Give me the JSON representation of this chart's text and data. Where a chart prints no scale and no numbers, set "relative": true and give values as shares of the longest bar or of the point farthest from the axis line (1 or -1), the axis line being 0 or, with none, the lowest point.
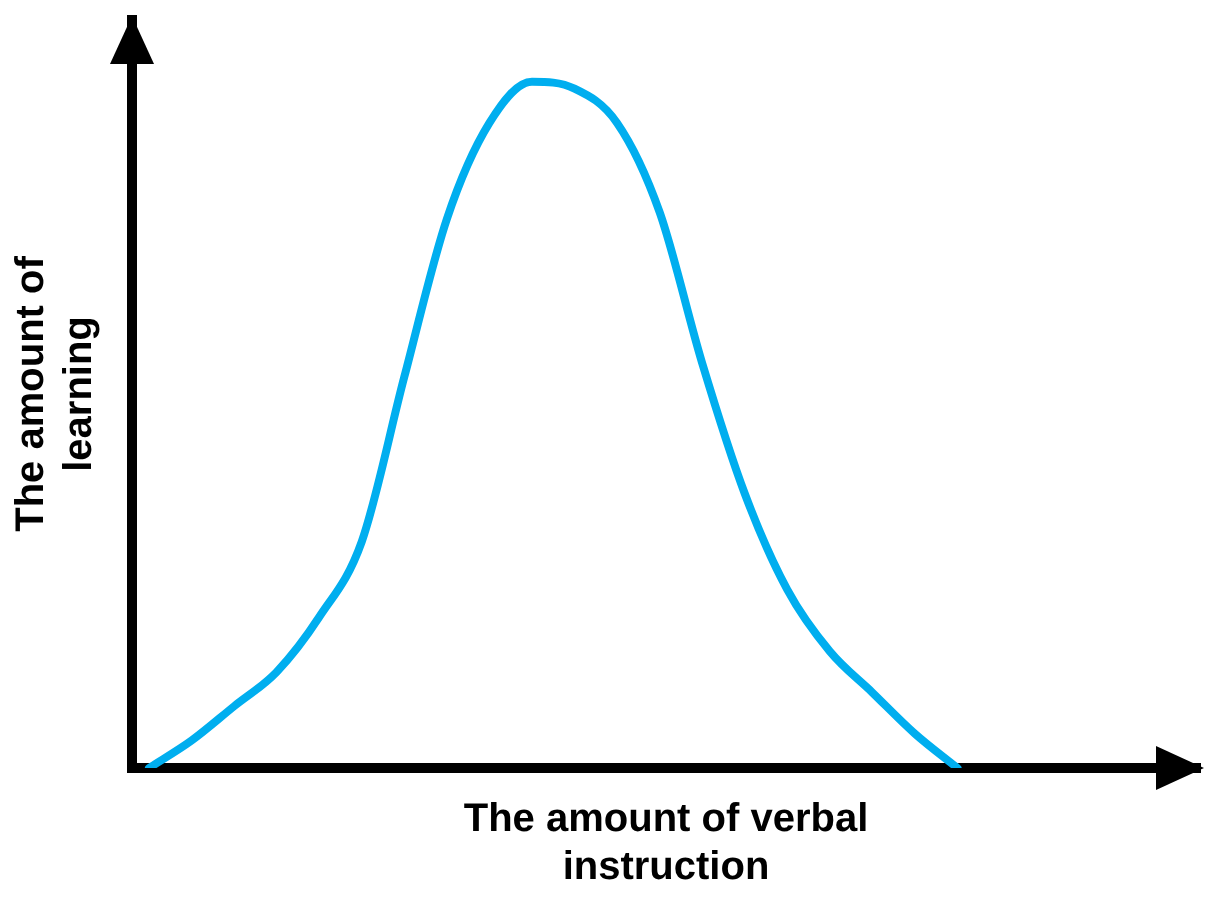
{
  "chart_data": {
    "type": "line",
    "relative": true,
    "xlabel": "The amount of verbal instruction",
    "ylabel": "The amount of learning",
    "categories": [
      null,
      null,
      null,
      null,
      null,
      null,
      null,
      null,
      null,
      null,
      null,
      null,
      null,
      null,
      null,
      null,
      null,
      null,
      null,
      null
    ],
    "series": [
      {
        "color": "#00aeef",
        "values": [
          0,
          0.04,
          0.09,
          0.14,
          0.22,
          0.33,
          0.57,
          0.8,
          0.94,
          1,
          0.99,
          0.94,
          0.81,
          0.59,
          0.4,
          0.26,
          0.17,
          0.11,
          0.05,
          0
        ]
      }
    ],
    "grid": false,
    "legend": false,
    "marker": "none",
    "line_style": "solid"
  }
}
